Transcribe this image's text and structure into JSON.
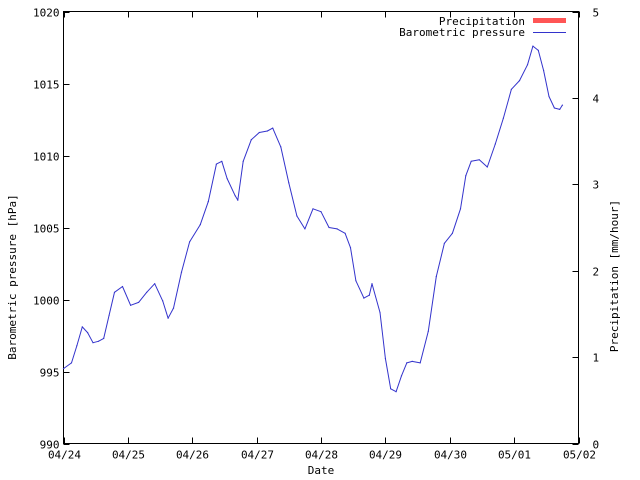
{
  "chart_data": {
    "type": "line",
    "xlabel": "Date",
    "ylabel_left": "Barometric pressure [hPa]",
    "ylabel_right": "Precipitation [mm/hour]",
    "x_ticks": [
      "04/24",
      "04/25",
      "04/26",
      "04/27",
      "04/28",
      "04/29",
      "04/30",
      "05/01",
      "05/02"
    ],
    "xlim": [
      "04/24",
      "05/02"
    ],
    "ylim_left": [
      990,
      1020
    ],
    "y_ticks_left": [
      990,
      995,
      1000,
      1005,
      1010,
      1015,
      1020
    ],
    "ylim_right": [
      0,
      5
    ],
    "y_ticks_right": [
      0,
      1,
      2,
      3,
      4,
      5
    ],
    "grid": false,
    "legend_position": "top-right",
    "series": [
      {
        "name": "Precipitation",
        "color": "#ff5555",
        "axis": "right",
        "style": "bar",
        "points": []
      },
      {
        "name": "Barometric pressure",
        "color": "#3333cc",
        "axis": "left",
        "style": "line",
        "points": [
          [
            "04/24 00:00",
            995.2
          ],
          [
            "04/24 03:00",
            995.6
          ],
          [
            "04/24 05:00",
            996.8
          ],
          [
            "04/24 07:00",
            998.1
          ],
          [
            "04/24 09:00",
            997.7
          ],
          [
            "04/24 11:00",
            997.0
          ],
          [
            "04/24 13:00",
            997.1
          ],
          [
            "04/24 15:00",
            997.3
          ],
          [
            "04/24 17:00",
            998.9
          ],
          [
            "04/24 19:00",
            1000.5
          ],
          [
            "04/24 22:00",
            1000.9
          ],
          [
            "04/25 01:00",
            999.6
          ],
          [
            "04/25 04:00",
            999.8
          ],
          [
            "04/25 07:00",
            1000.5
          ],
          [
            "04/25 10:00",
            1001.1
          ],
          [
            "04/25 13:00",
            999.9
          ],
          [
            "04/25 15:00",
            998.7
          ],
          [
            "04/25 17:00",
            999.4
          ],
          [
            "04/25 20:00",
            1001.9
          ],
          [
            "04/25 23:00",
            1004.0
          ],
          [
            "04/26 03:00",
            1005.2
          ],
          [
            "04/26 06:00",
            1006.8
          ],
          [
            "04/26 09:00",
            1009.4
          ],
          [
            "04/26 11:00",
            1009.6
          ],
          [
            "04/26 13:00",
            1008.4
          ],
          [
            "04/26 16:00",
            1007.2
          ],
          [
            "04/26 17:00",
            1006.9
          ],
          [
            "04/26 19:00",
            1009.6
          ],
          [
            "04/26 22:00",
            1011.1
          ],
          [
            "04/27 01:00",
            1011.6
          ],
          [
            "04/27 04:00",
            1011.7
          ],
          [
            "04/27 06:00",
            1011.9
          ],
          [
            "04/27 09:00",
            1010.6
          ],
          [
            "04/27 12:00",
            1008.1
          ],
          [
            "04/27 15:00",
            1005.8
          ],
          [
            "04/27 18:00",
            1004.9
          ],
          [
            "04/27 21:00",
            1006.3
          ],
          [
            "04/28 00:00",
            1006.1
          ],
          [
            "04/28 03:00",
            1005.0
          ],
          [
            "04/28 06:00",
            1004.9
          ],
          [
            "04/28 09:00",
            1004.6
          ],
          [
            "04/28 11:00",
            1003.6
          ],
          [
            "04/28 13:00",
            1001.3
          ],
          [
            "04/28 16:00",
            1000.1
          ],
          [
            "04/28 18:00",
            1000.3
          ],
          [
            "04/28 19:00",
            1001.1
          ],
          [
            "04/28 22:00",
            999.1
          ],
          [
            "04/29 00:00",
            995.9
          ],
          [
            "04/29 02:00",
            993.8
          ],
          [
            "04/29 04:00",
            993.6
          ],
          [
            "04/29 06:00",
            994.7
          ],
          [
            "04/29 08:00",
            995.6
          ],
          [
            "04/29 10:00",
            995.7
          ],
          [
            "04/29 13:00",
            995.6
          ],
          [
            "04/29 16:00",
            997.8
          ],
          [
            "04/29 19:00",
            1001.6
          ],
          [
            "04/29 22:00",
            1003.9
          ],
          [
            "04/30 01:00",
            1004.6
          ],
          [
            "04/30 04:00",
            1006.3
          ],
          [
            "04/30 06:00",
            1008.6
          ],
          [
            "04/30 08:00",
            1009.6
          ],
          [
            "04/30 11:00",
            1009.7
          ],
          [
            "04/30 14:00",
            1009.2
          ],
          [
            "04/30 17:00",
            1010.8
          ],
          [
            "04/30 20:00",
            1012.6
          ],
          [
            "04/30 23:00",
            1014.6
          ],
          [
            "05/01 02:00",
            1015.2
          ],
          [
            "05/01 05:00",
            1016.3
          ],
          [
            "05/01 07:00",
            1017.6
          ],
          [
            "05/01 09:00",
            1017.3
          ],
          [
            "05/01 11:00",
            1015.9
          ],
          [
            "05/01 13:00",
            1014.1
          ],
          [
            "05/01 15:00",
            1013.3
          ],
          [
            "05/01 17:00",
            1013.2
          ],
          [
            "05/01 18:00",
            1013.5
          ]
        ]
      }
    ]
  }
}
